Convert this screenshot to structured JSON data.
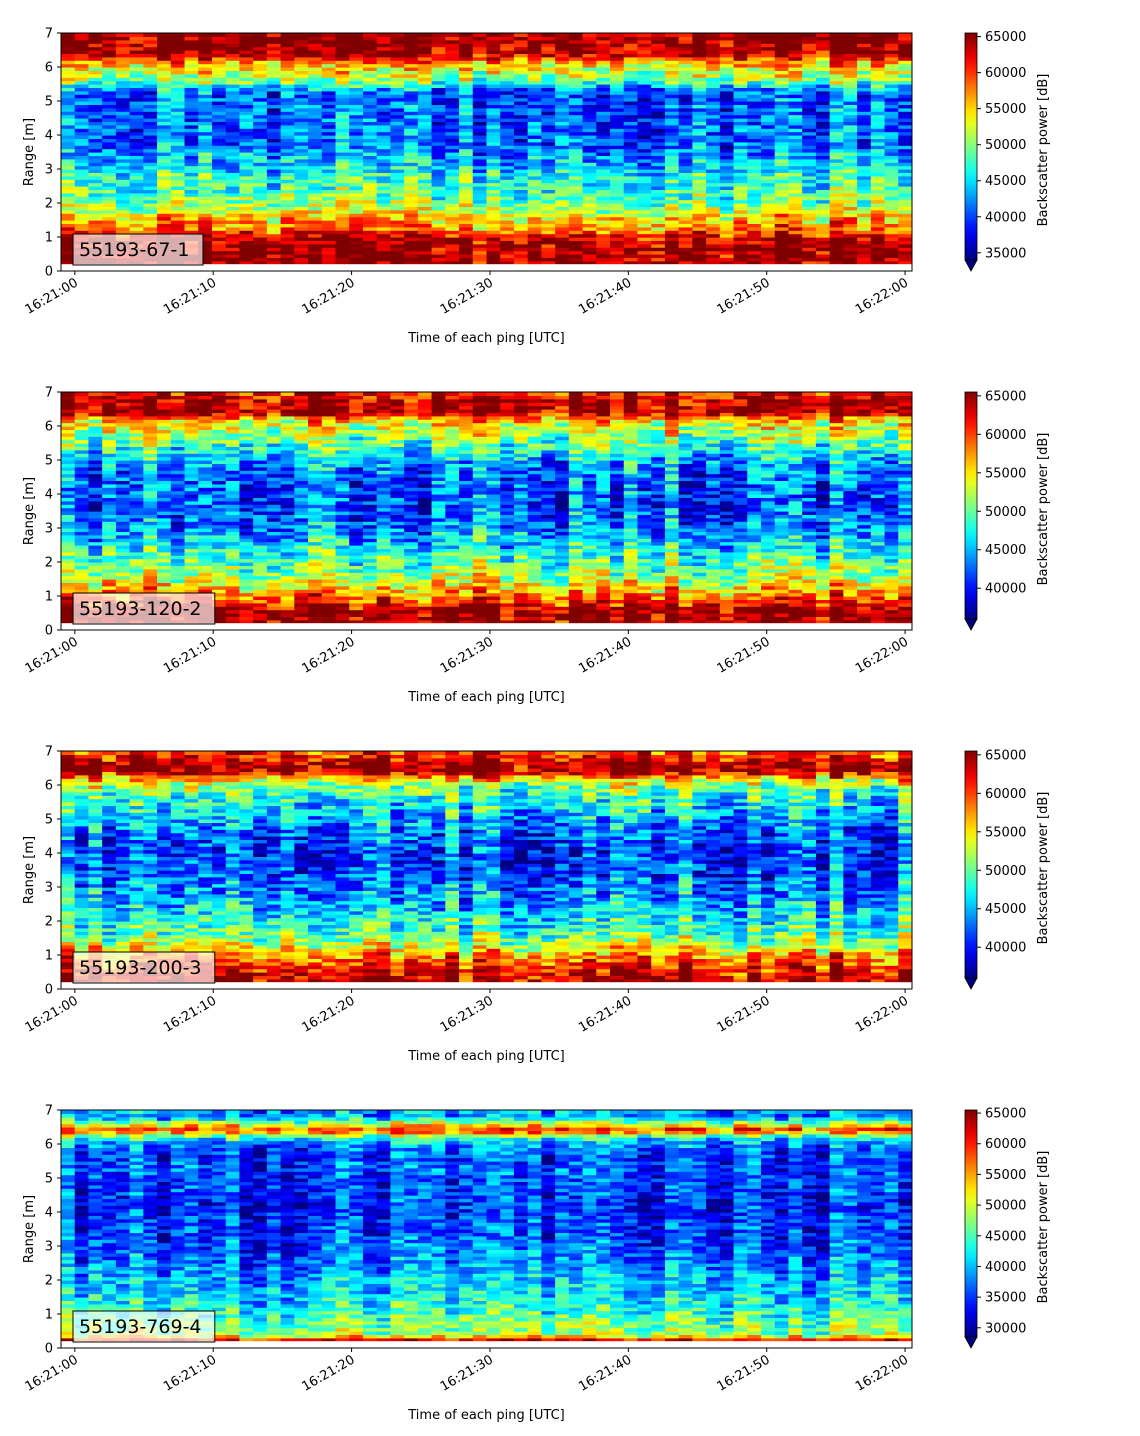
{
  "chart_data": [
    {
      "type": "heatmap",
      "instrument_label": "55193-67-1",
      "xlabel": "Time of each ping [UTC]",
      "ylabel": "Range [m]",
      "x_ticks": [
        "16:21:00",
        "16:21:10",
        "16:21:20",
        "16:21:30",
        "16:21:40",
        "16:21:50",
        "16:22:00"
      ],
      "xlim": [
        "16:20:59",
        "16:22:00.5"
      ],
      "y_ticks": [
        0,
        1,
        2,
        3,
        4,
        5,
        6,
        7
      ],
      "ylim": [
        0,
        7
      ],
      "colormap": "jet",
      "colorbar": {
        "label": "Backscatter power [dB]",
        "ticks": [
          35000,
          40000,
          45000,
          50000,
          55000,
          60000,
          65000
        ],
        "range": [
          34000,
          65500
        ],
        "extend": "min"
      },
      "range_profile": {
        "range_m": [
          0.0,
          0.2,
          0.4,
          0.6,
          0.8,
          1.0,
          1.2,
          1.4,
          1.6,
          1.8,
          2.0,
          2.2,
          2.4,
          2.6,
          2.8,
          3.0,
          3.2,
          3.4,
          3.6,
          3.8,
          4.0,
          4.2,
          4.4,
          4.6,
          4.8,
          5.0,
          5.2,
          5.4,
          5.6,
          5.8,
          6.0,
          6.2,
          6.4,
          6.6,
          6.8,
          7.0
        ],
        "typical_power": [
          null,
          65000,
          65000,
          65000,
          64000,
          64000,
          58000,
          57000,
          55000,
          52000,
          50000,
          49000,
          48000,
          47000,
          47000,
          45000,
          44000,
          43000,
          42000,
          41000,
          41000,
          41000,
          41000,
          41000,
          41000,
          41000,
          40000,
          44000,
          50000,
          52000,
          54000,
          58000,
          65000,
          65000,
          65000,
          65000
        ]
      }
    },
    {
      "type": "heatmap",
      "instrument_label": "55193-120-2",
      "xlabel": "Time of each ping [UTC]",
      "ylabel": "Range [m]",
      "x_ticks": [
        "16:21:00",
        "16:21:10",
        "16:21:20",
        "16:21:30",
        "16:21:40",
        "16:21:50",
        "16:22:00"
      ],
      "xlim": [
        "16:20:59",
        "16:22:00.5"
      ],
      "y_ticks": [
        0,
        1,
        2,
        3,
        4,
        5,
        6,
        7
      ],
      "ylim": [
        0,
        7
      ],
      "colormap": "jet",
      "colorbar": {
        "label": "Backscatter power [dB]",
        "ticks": [
          40000,
          45000,
          50000,
          55000,
          60000,
          65000
        ],
        "range": [
          36000,
          65500
        ],
        "extend": "min"
      },
      "range_profile": {
        "range_m": [
          0.0,
          0.2,
          0.4,
          0.6,
          0.8,
          1.0,
          1.2,
          1.4,
          1.6,
          1.8,
          2.0,
          2.2,
          2.4,
          2.6,
          2.8,
          3.0,
          3.2,
          3.4,
          3.6,
          3.8,
          4.0,
          4.2,
          4.4,
          4.6,
          4.8,
          5.0,
          5.2,
          5.4,
          5.6,
          5.8,
          6.0,
          6.2,
          6.4,
          6.6,
          6.8,
          7.0
        ],
        "typical_power": [
          null,
          65000,
          65000,
          65000,
          62000,
          59000,
          56000,
          54000,
          52000,
          51000,
          50000,
          49000,
          47000,
          46000,
          45000,
          44000,
          43000,
          43000,
          42000,
          42000,
          42000,
          42000,
          43000,
          43000,
          44000,
          45000,
          47000,
          49000,
          51000,
          52000,
          54000,
          56000,
          65000,
          65000,
          63000,
          62000
        ]
      }
    },
    {
      "type": "heatmap",
      "instrument_label": "55193-200-3",
      "xlabel": "Time of each ping [UTC]",
      "ylabel": "Range [m]",
      "x_ticks": [
        "16:21:00",
        "16:21:10",
        "16:21:20",
        "16:21:30",
        "16:21:40",
        "16:21:50",
        "16:22:00"
      ],
      "xlim": [
        "16:20:59",
        "16:22:00.5"
      ],
      "y_ticks": [
        0,
        1,
        2,
        3,
        4,
        5,
        6,
        7
      ],
      "ylim": [
        0,
        7
      ],
      "colormap": "jet",
      "colorbar": {
        "label": "Backscatter power [dB]",
        "ticks": [
          40000,
          45000,
          50000,
          55000,
          60000,
          65000
        ],
        "range": [
          36000,
          65500
        ],
        "extend": "min"
      },
      "range_profile": {
        "range_m": [
          0.0,
          0.2,
          0.4,
          0.6,
          0.8,
          1.0,
          1.2,
          1.4,
          1.6,
          1.8,
          2.0,
          2.2,
          2.4,
          2.6,
          2.8,
          3.0,
          3.2,
          3.4,
          3.6,
          3.8,
          4.0,
          4.2,
          4.4,
          4.6,
          4.8,
          5.0,
          5.2,
          5.4,
          5.6,
          5.8,
          6.0,
          6.2,
          6.4,
          6.6,
          6.8,
          7.0
        ],
        "typical_power": [
          null,
          65000,
          63000,
          62000,
          60000,
          58000,
          55000,
          52000,
          50000,
          49000,
          48000,
          47000,
          46000,
          45000,
          44000,
          44000,
          43000,
          42000,
          42000,
          42000,
          41000,
          42000,
          42000,
          43000,
          44000,
          45000,
          46000,
          47000,
          48000,
          50000,
          52000,
          56000,
          65000,
          65000,
          62000,
          60000
        ]
      }
    },
    {
      "type": "heatmap",
      "instrument_label": "55193-769-4",
      "xlabel": "Time of each ping [UTC]",
      "ylabel": "Range [m]",
      "x_ticks": [
        "16:21:00",
        "16:21:10",
        "16:21:20",
        "16:21:30",
        "16:21:40",
        "16:21:50",
        "16:22:00"
      ],
      "xlim": [
        "16:20:59",
        "16:22:00.5"
      ],
      "y_ticks": [
        0,
        1,
        2,
        3,
        4,
        5,
        6,
        7
      ],
      "ylim": [
        0,
        7
      ],
      "colormap": "jet",
      "colorbar": {
        "label": "Backscatter power [dB]",
        "ticks": [
          30000,
          35000,
          40000,
          45000,
          50000,
          55000,
          60000,
          65000
        ],
        "range": [
          28500,
          65500
        ],
        "extend": "min"
      },
      "range_profile": {
        "range_m": [
          0.0,
          0.2,
          0.4,
          0.6,
          0.8,
          1.0,
          1.2,
          1.4,
          1.6,
          1.8,
          2.0,
          2.2,
          2.4,
          2.6,
          2.8,
          3.0,
          3.2,
          3.4,
          3.6,
          3.8,
          4.0,
          4.2,
          4.4,
          4.6,
          4.8,
          5.0,
          5.2,
          5.4,
          5.6,
          5.8,
          6.0,
          6.2,
          6.4,
          6.6,
          6.8,
          7.0
        ],
        "typical_power": [
          null,
          65000,
          48000,
          47000,
          46000,
          44000,
          43000,
          42000,
          41000,
          40000,
          40000,
          39000,
          38000,
          37000,
          37000,
          36000,
          36000,
          35000,
          35000,
          35000,
          34000,
          34000,
          34000,
          35000,
          35000,
          35000,
          36000,
          36000,
          35000,
          36000,
          38000,
          42000,
          60000,
          50000,
          39000,
          38000
        ]
      }
    }
  ]
}
